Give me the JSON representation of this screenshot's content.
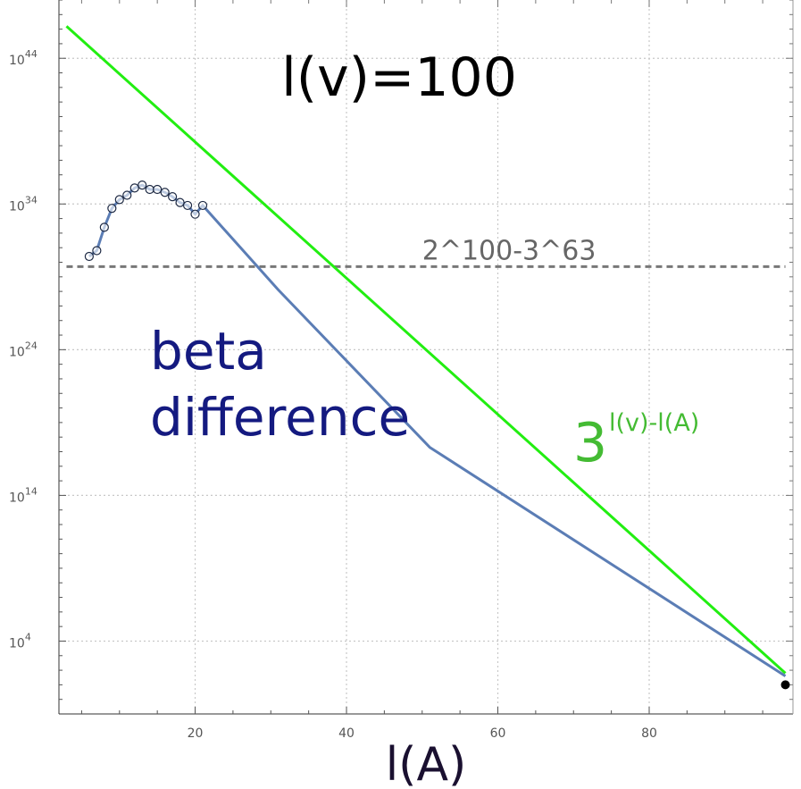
{
  "chart_data": {
    "type": "line",
    "title": "l(v)=100",
    "xlabel": "l(A)",
    "ylabel": "",
    "y_scale": "log10",
    "xlim": [
      2,
      99
    ],
    "ylim_exponent": [
      -1,
      48
    ],
    "grid": true,
    "x_ticks": [
      {
        "value": 20,
        "label": "20"
      },
      {
        "value": 40,
        "label": "40"
      },
      {
        "value": 60,
        "label": "60"
      },
      {
        "value": 80,
        "label": "80"
      }
    ],
    "y_ticks": [
      {
        "exponent": 4,
        "base": "10",
        "power": "4"
      },
      {
        "exponent": 14,
        "base": "10",
        "power": "14"
      },
      {
        "exponent": 24,
        "base": "10",
        "power": "24"
      },
      {
        "exponent": 34,
        "base": "10",
        "power": "34"
      },
      {
        "exponent": 44,
        "base": "10",
        "power": "44"
      }
    ],
    "series": [
      {
        "label": "beta difference",
        "label_lines": [
          "beta",
          "difference"
        ],
        "color": "#5b7db5",
        "label_color": "#141a80",
        "marker_color": "#1e2a44",
        "points_log10": [
          [
            6,
            30.4
          ],
          [
            7,
            30.8
          ],
          [
            8,
            32.4
          ],
          [
            9,
            33.7
          ],
          [
            10,
            34.3
          ],
          [
            11,
            34.6
          ],
          [
            12,
            35.1
          ],
          [
            13,
            35.3
          ],
          [
            14,
            35.0
          ],
          [
            15,
            35.0
          ],
          [
            16,
            34.8
          ],
          [
            17,
            34.5
          ],
          [
            18,
            34.1
          ],
          [
            19,
            33.9
          ],
          [
            20,
            33.3
          ],
          [
            21,
            33.9
          ],
          [
            31,
            28.1
          ],
          [
            51,
            17.3
          ],
          [
            98,
            1.6
          ]
        ],
        "marker_count": 16
      },
      {
        "label": "3^(l(v)-l(A))",
        "label_base": "3",
        "label_exponent": "l(v)-l(A)",
        "color": "#22ee11",
        "label_color": "#44bb33",
        "points_log10": [
          [
            3,
            46.2
          ],
          [
            98,
            1.8
          ]
        ]
      }
    ],
    "reference_line": {
      "label": "2^100-3^63",
      "log10_value": 29.7,
      "color": "#777777",
      "style": "dashed"
    },
    "end_point": {
      "x": 98,
      "log10_value": 1.0,
      "color": "#000000"
    }
  }
}
